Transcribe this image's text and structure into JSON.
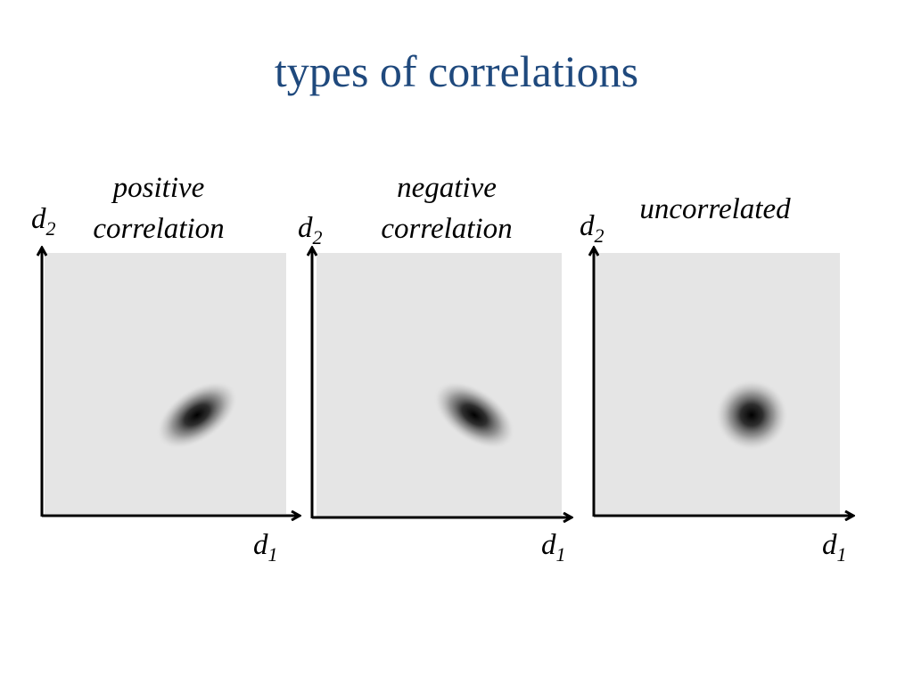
{
  "slide": {
    "title": "types of correlations"
  },
  "panels": [
    {
      "id": "positive",
      "label_lines": [
        "positive",
        "correlation"
      ],
      "x_axis": {
        "var": "d",
        "sub": "1"
      },
      "y_axis": {
        "var": "d",
        "sub": "2"
      },
      "correlation": "positive"
    },
    {
      "id": "negative",
      "label_lines": [
        "negative",
        "correlation"
      ],
      "x_axis": {
        "var": "d",
        "sub": "1"
      },
      "y_axis": {
        "var": "d",
        "sub": "2"
      },
      "correlation": "negative"
    },
    {
      "id": "uncorrelated",
      "label_lines": [
        "uncorrelated"
      ],
      "x_axis": {
        "var": "d",
        "sub": "1"
      },
      "y_axis": {
        "var": "d",
        "sub": "2"
      },
      "correlation": "none"
    }
  ],
  "colors": {
    "title": "#1f497d",
    "panel_background": "#e5e5e5",
    "blob": "#000000",
    "axis": "#000000"
  }
}
